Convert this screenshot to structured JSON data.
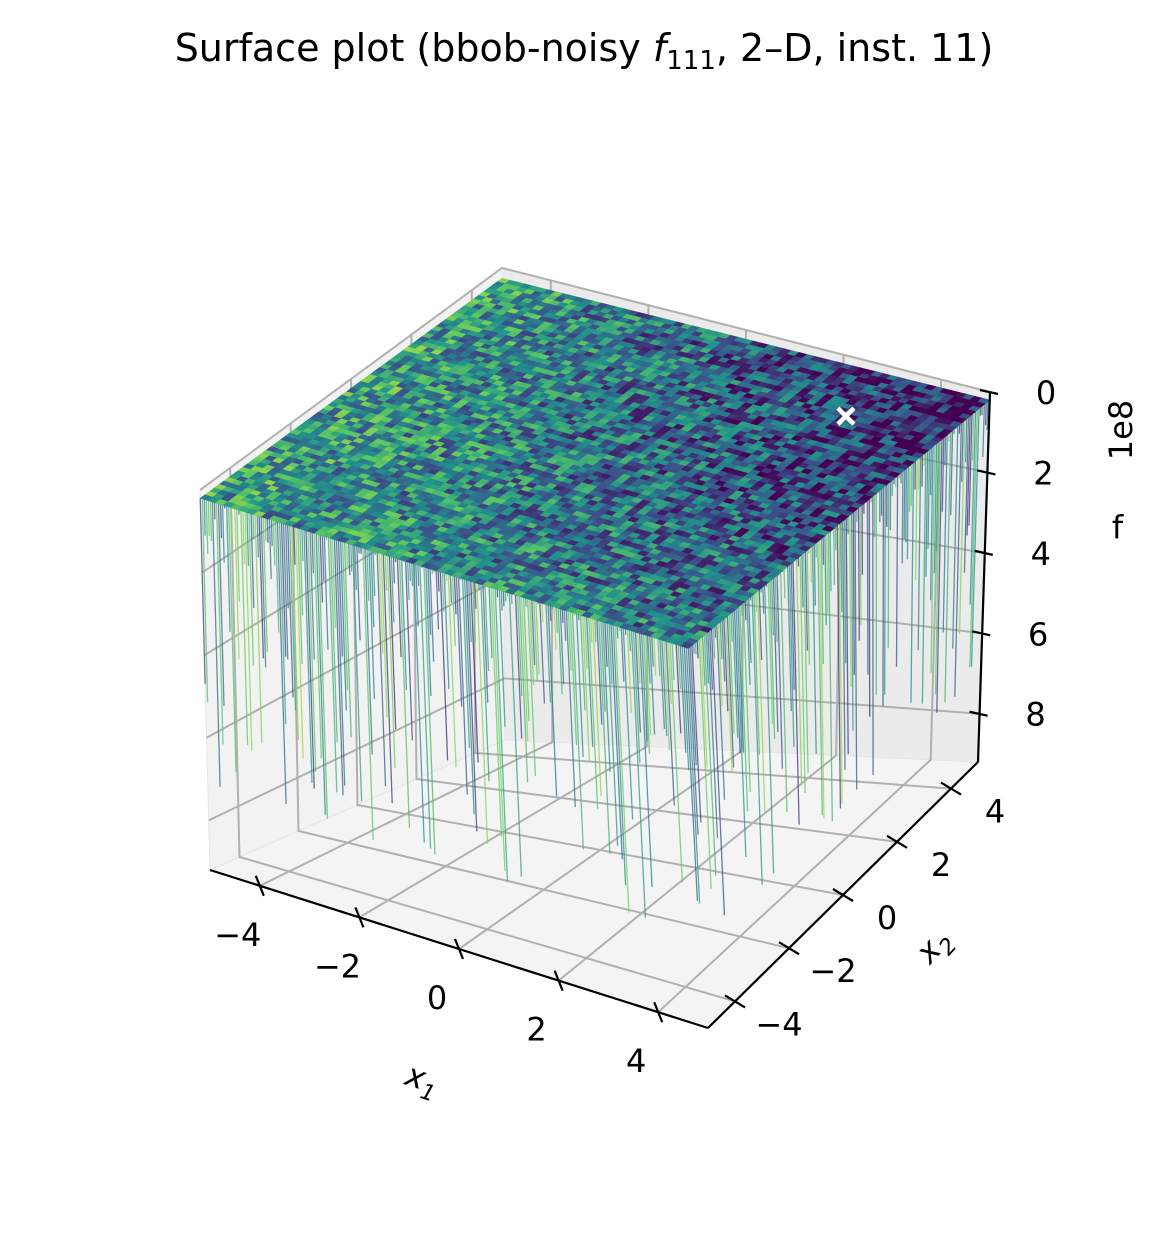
{
  "chart_data": {
    "type": "surface",
    "title": {
      "prefix": "Surface plot (bbob-noisy ",
      "func_symbol": "f",
      "func_subscript": "111",
      "suffix": ", 2–D, inst. 11)"
    },
    "xlabel": "x1",
    "ylabel": "x2",
    "zlabel": "f",
    "z_multiplier_label": "1e8",
    "x_ticks": [
      "−4",
      "−2",
      "0",
      "2",
      "4"
    ],
    "x_tick_values": [
      -4,
      -2,
      0,
      2,
      4
    ],
    "y_ticks": [
      "−4",
      "−2",
      "0",
      "2",
      "4"
    ],
    "y_tick_values": [
      -4,
      -2,
      0,
      2,
      4
    ],
    "z_ticks": [
      "0",
      "2",
      "4",
      "6",
      "8"
    ],
    "z_tick_values": [
      0,
      2,
      4,
      6,
      8
    ],
    "xlim": [
      -5,
      5
    ],
    "ylim": [
      -5,
      5
    ],
    "zlim": [
      0,
      9.2
    ],
    "z_axis_inverted": true,
    "colormap": "viridis",
    "colormap_stops": [
      "#440154",
      "#3b528b",
      "#21918c",
      "#5ec962",
      "#fde725"
    ],
    "grid": true,
    "marker": {
      "label": "optimum",
      "symbol": "x",
      "color": "#ffffff",
      "x": 3.1,
      "y": 3.3,
      "z": 0.15
    },
    "surface_baseline_f": 0.2,
    "surface_noise_spikes_max_f": 9.2
  }
}
